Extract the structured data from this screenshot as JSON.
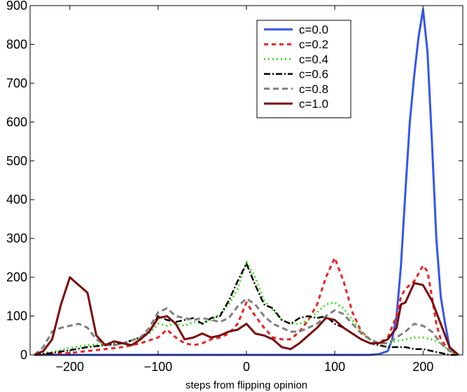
{
  "chart_data": {
    "type": "line",
    "title": "",
    "xlabel": "steps from flipping opinion",
    "ylabel": "",
    "xlim": [
      -245,
      245
    ],
    "ylim": [
      0,
      900
    ],
    "xticks": [
      -200,
      -100,
      0,
      100,
      200
    ],
    "xtick_labels": [
      "−200",
      "−100",
      "0",
      "100",
      "200"
    ],
    "yticks": [
      0,
      100,
      200,
      300,
      400,
      500,
      600,
      700,
      800,
      900
    ],
    "ytick_labels": [
      "0",
      "100",
      "200",
      "300",
      "400",
      "500",
      "600",
      "700",
      "800",
      "900"
    ],
    "grid": false,
    "legend_position": "top-right",
    "series": [
      {
        "name": "c=0.0",
        "color": "#3355ee",
        "dash": "solid",
        "width": 3,
        "x": [
          -240,
          140,
          150,
          160,
          165,
          170,
          175,
          180,
          185,
          190,
          195,
          200,
          205,
          210,
          215,
          220,
          225,
          230,
          235,
          240
        ],
        "y": [
          0,
          0,
          2,
          10,
          40,
          100,
          230,
          420,
          600,
          720,
          820,
          890,
          780,
          550,
          300,
          150,
          80,
          20,
          5,
          0
        ]
      },
      {
        "name": "c=0.2",
        "color": "#ee2222",
        "dash": "6,5",
        "width": 3,
        "x": [
          -240,
          -220,
          -200,
          -180,
          -160,
          -140,
          -120,
          -100,
          -90,
          -80,
          -70,
          -60,
          -50,
          -40,
          -30,
          -20,
          -10,
          0,
          10,
          20,
          30,
          40,
          50,
          60,
          70,
          80,
          90,
          100,
          110,
          120,
          130,
          140,
          150,
          160,
          170,
          175,
          180,
          185,
          190,
          195,
          200,
          205,
          210,
          215,
          220,
          230,
          240
        ],
        "y": [
          0,
          2,
          5,
          10,
          15,
          20,
          30,
          45,
          65,
          45,
          30,
          25,
          30,
          40,
          45,
          55,
          80,
          135,
          100,
          70,
          45,
          40,
          40,
          60,
          90,
          130,
          200,
          250,
          190,
          110,
          60,
          40,
          30,
          45,
          100,
          150,
          170,
          180,
          190,
          210,
          230,
          215,
          150,
          80,
          40,
          10,
          0
        ]
      },
      {
        "name": "c=0.4",
        "color": "#44dd22",
        "dash": "2,4",
        "width": 3,
        "x": [
          -240,
          -220,
          -200,
          -180,
          -160,
          -140,
          -120,
          -110,
          -100,
          -90,
          -80,
          -70,
          -60,
          -50,
          -40,
          -30,
          -20,
          -10,
          0,
          10,
          20,
          30,
          40,
          50,
          60,
          70,
          80,
          90,
          100,
          110,
          120,
          130,
          140,
          150,
          160,
          170,
          180,
          190,
          200,
          210,
          220,
          230,
          240
        ],
        "y": [
          0,
          8,
          18,
          25,
          28,
          30,
          45,
          55,
          80,
          75,
          80,
          75,
          85,
          80,
          90,
          105,
          130,
          170,
          240,
          200,
          140,
          115,
          90,
          80,
          80,
          90,
          110,
          130,
          135,
          120,
          90,
          60,
          40,
          30,
          30,
          35,
          40,
          45,
          45,
          40,
          30,
          10,
          0
        ]
      },
      {
        "name": "c=0.6",
        "color": "#000000",
        "dash": "9,3,2,3",
        "width": 2.5,
        "x": [
          -240,
          -220,
          -200,
          -180,
          -160,
          -140,
          -120,
          -110,
          -100,
          -90,
          -80,
          -70,
          -60,
          -50,
          -40,
          -30,
          -20,
          -10,
          0,
          10,
          20,
          30,
          40,
          50,
          60,
          70,
          80,
          90,
          100,
          110,
          120,
          130,
          140,
          150,
          160,
          170,
          180,
          190,
          200,
          210,
          220,
          230,
          240
        ],
        "y": [
          0,
          5,
          12,
          20,
          25,
          30,
          45,
          60,
          100,
          90,
          85,
          90,
          95,
          80,
          95,
          100,
          140,
          190,
          235,
          180,
          130,
          120,
          90,
          80,
          95,
          100,
          95,
          100,
          80,
          70,
          55,
          40,
          30,
          25,
          20,
          20,
          20,
          15,
          15,
          10,
          5,
          0,
          0
        ]
      },
      {
        "name": "c=0.8",
        "color": "#808080",
        "dash": "8,5",
        "width": 3,
        "x": [
          -240,
          -230,
          -220,
          -210,
          -200,
          -190,
          -180,
          -170,
          -160,
          -150,
          -140,
          -120,
          -110,
          -100,
          -90,
          -80,
          -70,
          -60,
          -50,
          -40,
          -30,
          -20,
          -10,
          0,
          10,
          20,
          30,
          40,
          50,
          60,
          70,
          80,
          90,
          100,
          110,
          120,
          130,
          140,
          150,
          160,
          170,
          180,
          190,
          200,
          210,
          220,
          230,
          240
        ],
        "y": [
          0,
          20,
          60,
          70,
          75,
          80,
          70,
          40,
          25,
          25,
          30,
          45,
          70,
          110,
          120,
          100,
          95,
          90,
          95,
          90,
          85,
          95,
          125,
          145,
          130,
          100,
          80,
          70,
          60,
          60,
          70,
          80,
          100,
          115,
          105,
          80,
          55,
          40,
          30,
          30,
          45,
          60,
          80,
          75,
          60,
          30,
          10,
          0
        ]
      },
      {
        "name": "c=1.0",
        "color": "#7a0a0a",
        "dash": "solid",
        "width": 3,
        "x": [
          -240,
          -230,
          -220,
          -210,
          -200,
          -190,
          -180,
          -170,
          -160,
          -150,
          -140,
          -130,
          -120,
          -110,
          -100,
          -90,
          -80,
          -70,
          -60,
          -50,
          -40,
          -30,
          -20,
          -10,
          0,
          10,
          20,
          30,
          40,
          50,
          60,
          70,
          80,
          90,
          100,
          110,
          120,
          130,
          140,
          150,
          160,
          170,
          175,
          180,
          190,
          200,
          210,
          220,
          230,
          240
        ],
        "y": [
          0,
          10,
          40,
          130,
          200,
          180,
          160,
          50,
          25,
          35,
          30,
          25,
          40,
          60,
          95,
          100,
          80,
          40,
          45,
          55,
          45,
          50,
          60,
          65,
          80,
          55,
          50,
          40,
          20,
          15,
          30,
          50,
          70,
          95,
          90,
          70,
          55,
          40,
          30,
          30,
          40,
          70,
          130,
          135,
          185,
          180,
          140,
          80,
          20,
          0
        ]
      }
    ]
  }
}
